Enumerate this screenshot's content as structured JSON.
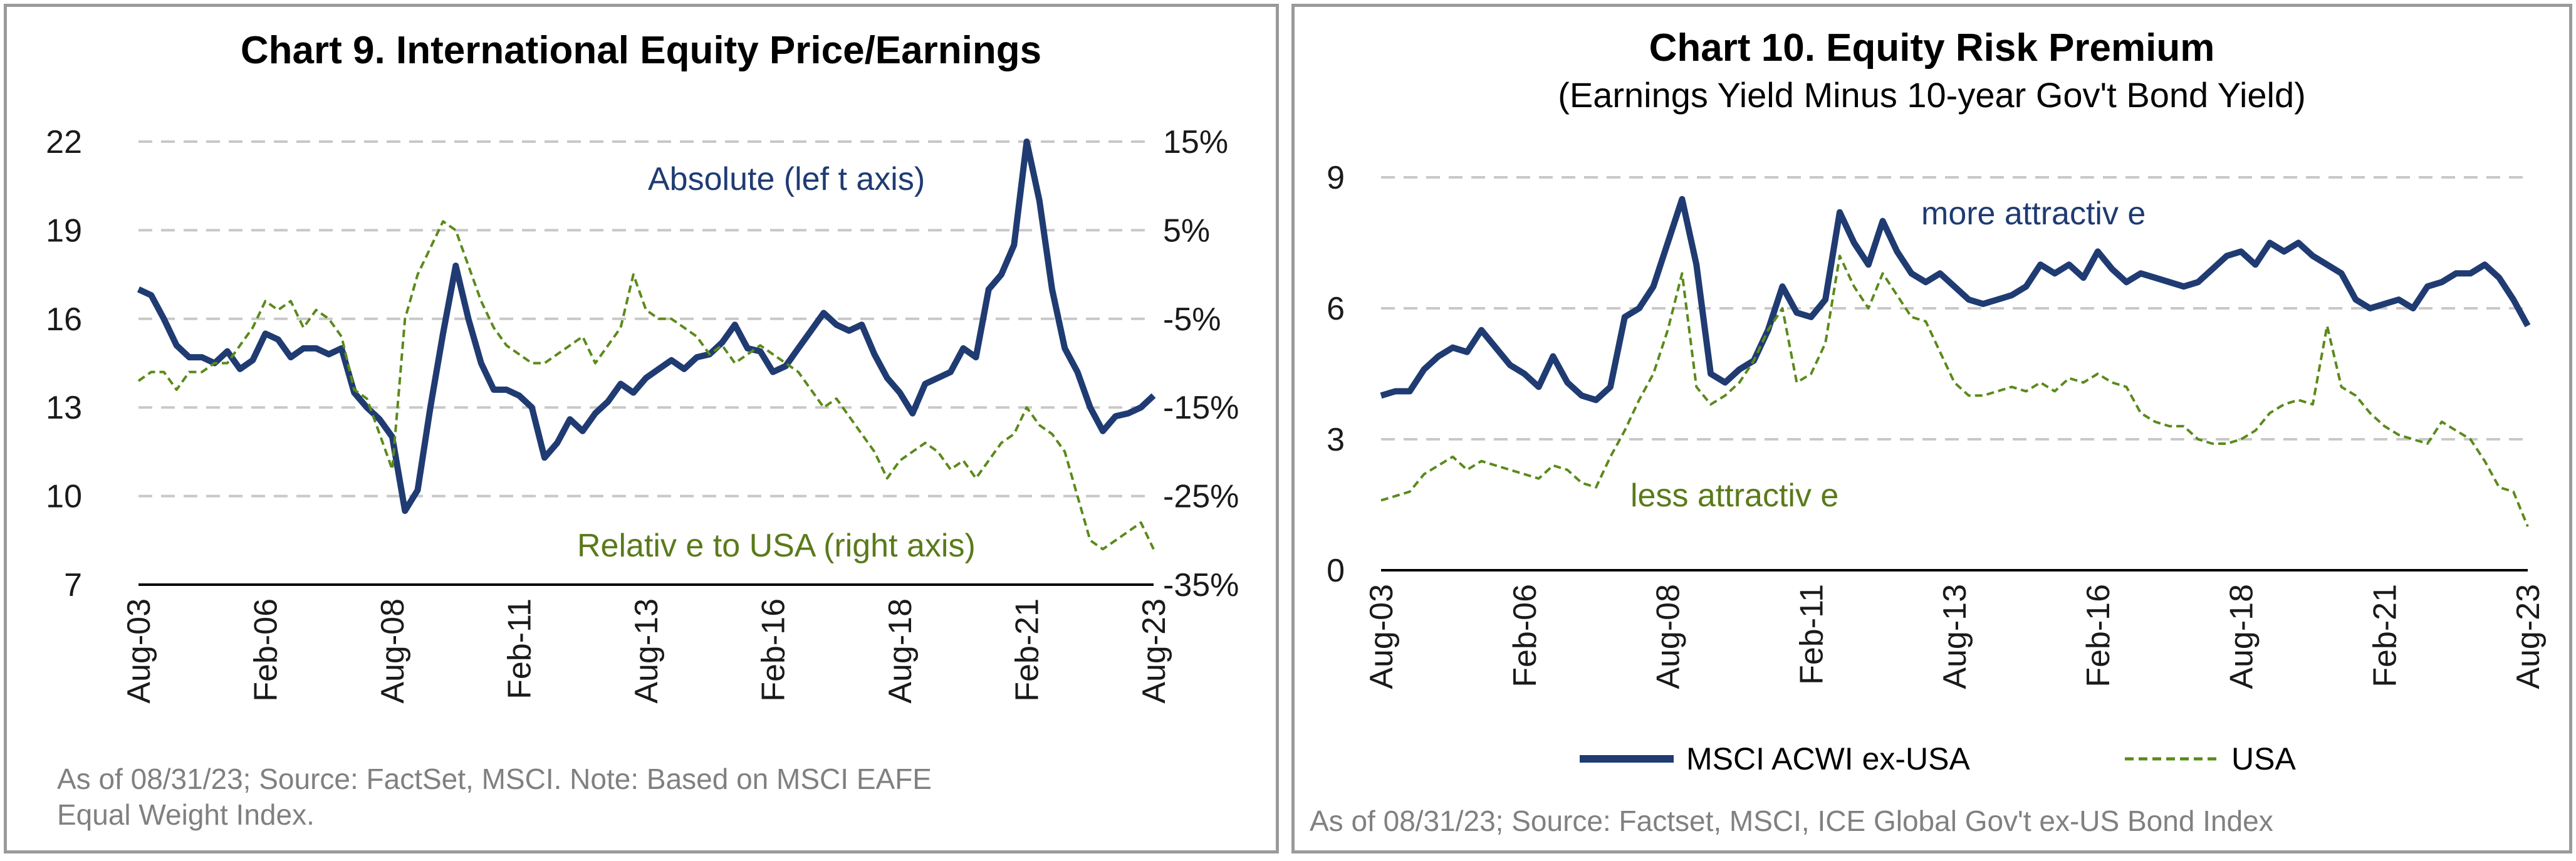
{
  "chart_data": [
    {
      "type": "line",
      "title": "Chart 9. International Equity Price/Earnings",
      "x_ticks": [
        "Aug-03",
        "Feb-06",
        "Aug-08",
        "Feb-11",
        "Aug-13",
        "Feb-16",
        "Aug-18",
        "Feb-21",
        "Aug-23"
      ],
      "y_left_ticks": [
        "22",
        "19",
        "16",
        "13",
        "10",
        "7"
      ],
      "y_right_ticks": [
        "15%",
        "5%",
        "-5%",
        "-15%",
        "-25%",
        "-35%"
      ],
      "ylim_left": [
        7,
        22
      ],
      "ylim_right": [
        -35,
        15
      ],
      "grid": true,
      "annotations": {
        "absolute": "Absolute (lef t axis)",
        "relative": "Relativ e to USA (right axis)"
      },
      "note": [
        "As of 08/31/23; Source: FactSet, MSCI. Note: Based on MSCI EAFE",
        "Equal Weight Index."
      ],
      "series": [
        {
          "name": "Absolute (lef t axis)",
          "axis": "left",
          "color": "#1f3b72",
          "style": "solid",
          "x": [
            "2003-08",
            "2003-11",
            "2004-02",
            "2004-05",
            "2004-08",
            "2004-11",
            "2005-02",
            "2005-05",
            "2005-08",
            "2005-11",
            "2006-02",
            "2006-05",
            "2006-08",
            "2006-11",
            "2007-02",
            "2007-05",
            "2007-08",
            "2007-11",
            "2008-02",
            "2008-05",
            "2008-08",
            "2008-11",
            "2009-02",
            "2009-05",
            "2009-08",
            "2009-11",
            "2010-02",
            "2010-05",
            "2010-08",
            "2010-11",
            "2011-02",
            "2011-05",
            "2011-08",
            "2011-11",
            "2012-02",
            "2012-05",
            "2012-08",
            "2012-11",
            "2013-02",
            "2013-05",
            "2013-08",
            "2013-11",
            "2014-02",
            "2014-05",
            "2014-08",
            "2014-11",
            "2015-02",
            "2015-05",
            "2015-08",
            "2015-11",
            "2016-02",
            "2016-05",
            "2016-08",
            "2016-11",
            "2017-02",
            "2017-05",
            "2017-08",
            "2017-11",
            "2018-02",
            "2018-05",
            "2018-08",
            "2018-11",
            "2019-02",
            "2019-05",
            "2019-08",
            "2019-11",
            "2020-02",
            "2020-05",
            "2020-08",
            "2020-11",
            "2021-02",
            "2021-05",
            "2021-08",
            "2021-11",
            "2022-02",
            "2022-05",
            "2022-08",
            "2022-11",
            "2023-02",
            "2023-05",
            "2023-08"
          ],
          "values": [
            17.0,
            16.8,
            16.0,
            15.1,
            14.7,
            14.7,
            14.5,
            14.9,
            14.3,
            14.6,
            15.5,
            15.3,
            14.7,
            15.0,
            15.0,
            14.8,
            15.0,
            13.5,
            13.0,
            12.6,
            12.0,
            9.5,
            10.2,
            13.0,
            15.5,
            17.8,
            16.0,
            14.5,
            13.6,
            13.6,
            13.4,
            13.0,
            11.3,
            11.8,
            12.6,
            12.2,
            12.8,
            13.2,
            13.8,
            13.5,
            14.0,
            14.3,
            14.6,
            14.3,
            14.7,
            14.8,
            15.2,
            15.8,
            15.0,
            14.9,
            14.2,
            14.4,
            15.0,
            15.6,
            16.2,
            15.8,
            15.6,
            15.8,
            14.8,
            14.0,
            13.5,
            12.8,
            13.8,
            14.0,
            14.2,
            15.0,
            14.7,
            17.0,
            17.5,
            18.5,
            22.0,
            20.0,
            17.0,
            15.0,
            14.2,
            13.0,
            12.2,
            12.7,
            12.8,
            13.0,
            13.4
          ]
        },
        {
          "name": "Relativ e to USA (right axis)",
          "axis": "right",
          "color": "#5a8a1a",
          "style": "dashed",
          "x": [
            "2003-08",
            "2003-11",
            "2004-02",
            "2004-05",
            "2004-08",
            "2004-11",
            "2005-02",
            "2005-05",
            "2005-08",
            "2005-11",
            "2006-02",
            "2006-05",
            "2006-08",
            "2006-11",
            "2007-02",
            "2007-05",
            "2007-08",
            "2007-11",
            "2008-02",
            "2008-05",
            "2008-08",
            "2008-11",
            "2009-02",
            "2009-05",
            "2009-08",
            "2009-11",
            "2010-02",
            "2010-05",
            "2010-08",
            "2010-11",
            "2011-02",
            "2011-05",
            "2011-08",
            "2011-11",
            "2012-02",
            "2012-05",
            "2012-08",
            "2012-11",
            "2013-02",
            "2013-05",
            "2013-08",
            "2013-11",
            "2014-02",
            "2014-05",
            "2014-08",
            "2014-11",
            "2015-02",
            "2015-05",
            "2015-08",
            "2015-11",
            "2016-02",
            "2016-05",
            "2016-08",
            "2016-11",
            "2017-02",
            "2017-05",
            "2017-08",
            "2017-11",
            "2018-02",
            "2018-05",
            "2018-08",
            "2018-11",
            "2019-02",
            "2019-05",
            "2019-08",
            "2019-11",
            "2020-02",
            "2020-05",
            "2020-08",
            "2020-11",
            "2021-02",
            "2021-05",
            "2021-08",
            "2021-11",
            "2022-02",
            "2022-05",
            "2022-08",
            "2022-11",
            "2023-02",
            "2023-05",
            "2023-08"
          ],
          "values": [
            -12,
            -11,
            -11,
            -13,
            -11,
            -11,
            -10,
            -10,
            -8,
            -6,
            -3,
            -4,
            -3,
            -6,
            -4,
            -5,
            -7,
            -13,
            -14,
            -18,
            -22,
            -5,
            0,
            3,
            6,
            5,
            1,
            -3,
            -6,
            -8,
            -9,
            -10,
            -10,
            -9,
            -8,
            -7,
            -10,
            -8,
            -6,
            0,
            -4,
            -5,
            -5,
            -6,
            -7,
            -9,
            -8,
            -10,
            -9,
            -8,
            -9,
            -10,
            -11,
            -13,
            -15,
            -14,
            -16,
            -18,
            -20,
            -23,
            -21,
            -20,
            -19,
            -20,
            -22,
            -21,
            -23,
            -21,
            -19,
            -18,
            -15,
            -17,
            -18,
            -20,
            -25,
            -30,
            -31,
            -30,
            -29,
            -28,
            -31
          ]
        }
      ]
    },
    {
      "type": "line",
      "title": "Chart 10. Equity Risk Premium",
      "subtitle": "(Earnings Yield Minus  10-year Gov't Bond Yield)",
      "x_ticks": [
        "Aug-03",
        "Feb-06",
        "Aug-08",
        "Feb-11",
        "Aug-13",
        "Feb-16",
        "Aug-18",
        "Feb-21",
        "Aug-23"
      ],
      "y_ticks": [
        "9",
        "6",
        "3",
        "0"
      ],
      "ylim": [
        0,
        9
      ],
      "grid": true,
      "annotations": {
        "more": "more attractiv e",
        "less": "less attractiv e"
      },
      "legend": {
        "position": "bottom",
        "items": [
          "MSCI ACWI ex-USA",
          "USA"
        ]
      },
      "note": "As of 08/31/23; Source: Factset, MSCI, ICE Global Gov't ex-US Bond Index",
      "series": [
        {
          "name": "MSCI ACWI ex-USA",
          "color": "#1f3b72",
          "style": "solid",
          "x": [
            "2003-08",
            "2003-11",
            "2004-02",
            "2004-05",
            "2004-08",
            "2004-11",
            "2005-02",
            "2005-05",
            "2005-08",
            "2005-11",
            "2006-02",
            "2006-05",
            "2006-08",
            "2006-11",
            "2007-02",
            "2007-05",
            "2007-08",
            "2007-11",
            "2008-02",
            "2008-05",
            "2008-08",
            "2008-11",
            "2009-02",
            "2009-05",
            "2009-08",
            "2009-11",
            "2010-02",
            "2010-05",
            "2010-08",
            "2010-11",
            "2011-02",
            "2011-05",
            "2011-08",
            "2011-11",
            "2012-02",
            "2012-05",
            "2012-08",
            "2012-11",
            "2013-02",
            "2013-05",
            "2013-08",
            "2013-11",
            "2014-02",
            "2014-05",
            "2014-08",
            "2014-11",
            "2015-02",
            "2015-05",
            "2015-08",
            "2015-11",
            "2016-02",
            "2016-05",
            "2016-08",
            "2016-11",
            "2017-02",
            "2017-05",
            "2017-08",
            "2017-11",
            "2018-02",
            "2018-05",
            "2018-08",
            "2018-11",
            "2019-02",
            "2019-05",
            "2019-08",
            "2019-11",
            "2020-02",
            "2020-05",
            "2020-08",
            "2020-11",
            "2021-02",
            "2021-05",
            "2021-08",
            "2021-11",
            "2022-02",
            "2022-05",
            "2022-08",
            "2022-11",
            "2023-02",
            "2023-05",
            "2023-08"
          ],
          "values": [
            4.0,
            4.1,
            4.1,
            4.6,
            4.9,
            5.1,
            5.0,
            5.5,
            5.1,
            4.7,
            4.5,
            4.2,
            4.9,
            4.3,
            4.0,
            3.9,
            4.2,
            5.8,
            6.0,
            6.5,
            7.5,
            8.5,
            7.0,
            4.5,
            4.3,
            4.6,
            4.8,
            5.5,
            6.5,
            5.9,
            5.8,
            6.2,
            8.2,
            7.5,
            7.0,
            8.0,
            7.3,
            6.8,
            6.6,
            6.8,
            6.5,
            6.2,
            6.1,
            6.2,
            6.3,
            6.5,
            7.0,
            6.8,
            7.0,
            6.7,
            7.3,
            6.9,
            6.6,
            6.8,
            6.7,
            6.6,
            6.5,
            6.6,
            6.9,
            7.2,
            7.3,
            7.0,
            7.5,
            7.3,
            7.5,
            7.2,
            7.0,
            6.8,
            6.2,
            6.0,
            6.1,
            6.2,
            6.0,
            6.5,
            6.6,
            6.8,
            6.8,
            7.0,
            6.7,
            6.2,
            5.6
          ]
        },
        {
          "name": "USA",
          "color": "#5a8a1a",
          "style": "dashed",
          "x": [
            "2003-08",
            "2003-11",
            "2004-02",
            "2004-05",
            "2004-08",
            "2004-11",
            "2005-02",
            "2005-05",
            "2005-08",
            "2005-11",
            "2006-02",
            "2006-05",
            "2006-08",
            "2006-11",
            "2007-02",
            "2007-05",
            "2007-08",
            "2007-11",
            "2008-02",
            "2008-05",
            "2008-08",
            "2008-11",
            "2009-02",
            "2009-05",
            "2009-08",
            "2009-11",
            "2010-02",
            "2010-05",
            "2010-08",
            "2010-11",
            "2011-02",
            "2011-05",
            "2011-08",
            "2011-11",
            "2012-02",
            "2012-05",
            "2012-08",
            "2012-11",
            "2013-02",
            "2013-05",
            "2013-08",
            "2013-11",
            "2014-02",
            "2014-05",
            "2014-08",
            "2014-11",
            "2015-02",
            "2015-05",
            "2015-08",
            "2015-11",
            "2016-02",
            "2016-05",
            "2016-08",
            "2016-11",
            "2017-02",
            "2017-05",
            "2017-08",
            "2017-11",
            "2018-02",
            "2018-05",
            "2018-08",
            "2018-11",
            "2019-02",
            "2019-05",
            "2019-08",
            "2019-11",
            "2020-02",
            "2020-05",
            "2020-08",
            "2020-11",
            "2021-02",
            "2021-05",
            "2021-08",
            "2021-11",
            "2022-02",
            "2022-05",
            "2022-08",
            "2022-11",
            "2023-02",
            "2023-05",
            "2023-08"
          ],
          "values": [
            1.6,
            1.7,
            1.8,
            2.2,
            2.4,
            2.6,
            2.3,
            2.5,
            2.4,
            2.3,
            2.2,
            2.1,
            2.4,
            2.3,
            2.0,
            1.9,
            2.6,
            3.2,
            3.9,
            4.5,
            5.5,
            6.8,
            4.2,
            3.8,
            4.0,
            4.3,
            4.8,
            5.5,
            6.0,
            4.3,
            4.5,
            5.2,
            7.2,
            6.5,
            6.0,
            6.8,
            6.3,
            5.8,
            5.7,
            5.0,
            4.3,
            4.0,
            4.0,
            4.1,
            4.2,
            4.1,
            4.3,
            4.1,
            4.4,
            4.3,
            4.5,
            4.3,
            4.2,
            3.6,
            3.4,
            3.3,
            3.3,
            3.0,
            2.9,
            2.9,
            3.0,
            3.2,
            3.6,
            3.8,
            3.9,
            3.8,
            5.6,
            4.2,
            4.0,
            3.6,
            3.3,
            3.1,
            3.0,
            2.9,
            3.4,
            3.2,
            3.0,
            2.5,
            1.9,
            1.8,
            1.0
          ]
        }
      ]
    }
  ]
}
